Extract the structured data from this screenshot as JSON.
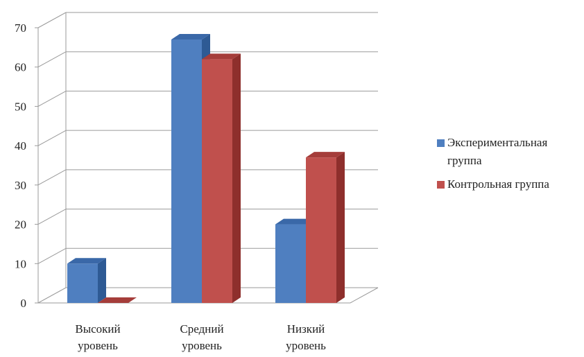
{
  "chart_data": {
    "type": "bar",
    "categories": [
      "Высокий уровень",
      "Средний уровень",
      "Низкий уровень"
    ],
    "category_lines": [
      [
        "Высокий",
        "уровень"
      ],
      [
        "Средний",
        "уровень"
      ],
      [
        "Низкий",
        "уровень"
      ]
    ],
    "series": [
      {
        "name": "Экспериментальная группа",
        "name_lines": [
          "Экспериментальная",
          "группа"
        ],
        "values": [
          10,
          67,
          20
        ],
        "color": "#4F7FC0",
        "side": "#2E5A94",
        "top": "#3A68A8"
      },
      {
        "name": "Контрольная группа",
        "name_lines": [
          "Контрольная группа"
        ],
        "values": [
          0,
          62,
          37
        ],
        "color": "#C0504D",
        "side": "#8E2F2C",
        "top": "#A53D3A"
      }
    ],
    "yticks": [
      0,
      10,
      20,
      30,
      40,
      50,
      60,
      70
    ],
    "ylim": [
      0,
      70
    ],
    "grid": true,
    "legend_position": "right",
    "three_d": true
  }
}
